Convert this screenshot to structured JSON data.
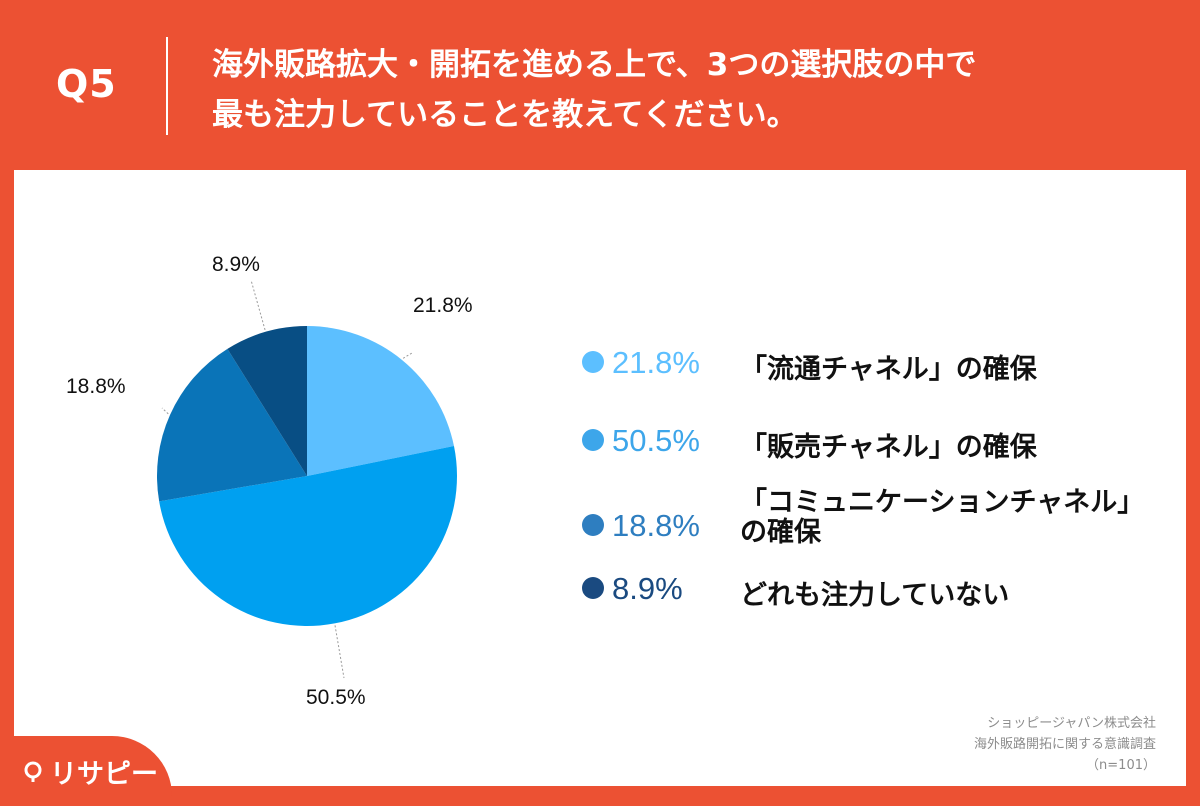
{
  "header": {
    "q_number": "Q5",
    "question_line1": "海外販路拡大・開拓を進める上で、3つの選択肢の中で",
    "question_line2": "最も注力していることを教えてください。"
  },
  "chart_data": {
    "type": "pie",
    "title": "海外販路拡大・開拓を進める上で、3つの選択肢の中で最も注力していることを教えてください。",
    "slices": [
      {
        "label": "「流通チャネル」の確保",
        "value": 21.8,
        "display": "21.8%",
        "color": "#5cbfff",
        "text_color": "#5cbfff"
      },
      {
        "label": "「販売チャネル」の確保",
        "value": 50.5,
        "display": "50.5%",
        "color": "#00a0f0",
        "text_color": "#3da6ea"
      },
      {
        "label": "「コミュニケーションチャネル」の確保",
        "label_line1": "「コミュニケーションチャネル」",
        "label_line2": "の確保",
        "value": 18.8,
        "display": "18.8%",
        "color": "#0a74b8",
        "text_color": "#2e7ec0"
      },
      {
        "label": "どれも注力していない",
        "value": 8.9,
        "display": "8.9%",
        "color": "#084e84",
        "text_color": "#1a4a80"
      }
    ]
  },
  "source": {
    "company": "ショッピージャパン株式会社",
    "survey": "海外販路開拓に関する意識調査",
    "n": "（n=101）"
  },
  "logo": {
    "text": "リサピー"
  }
}
